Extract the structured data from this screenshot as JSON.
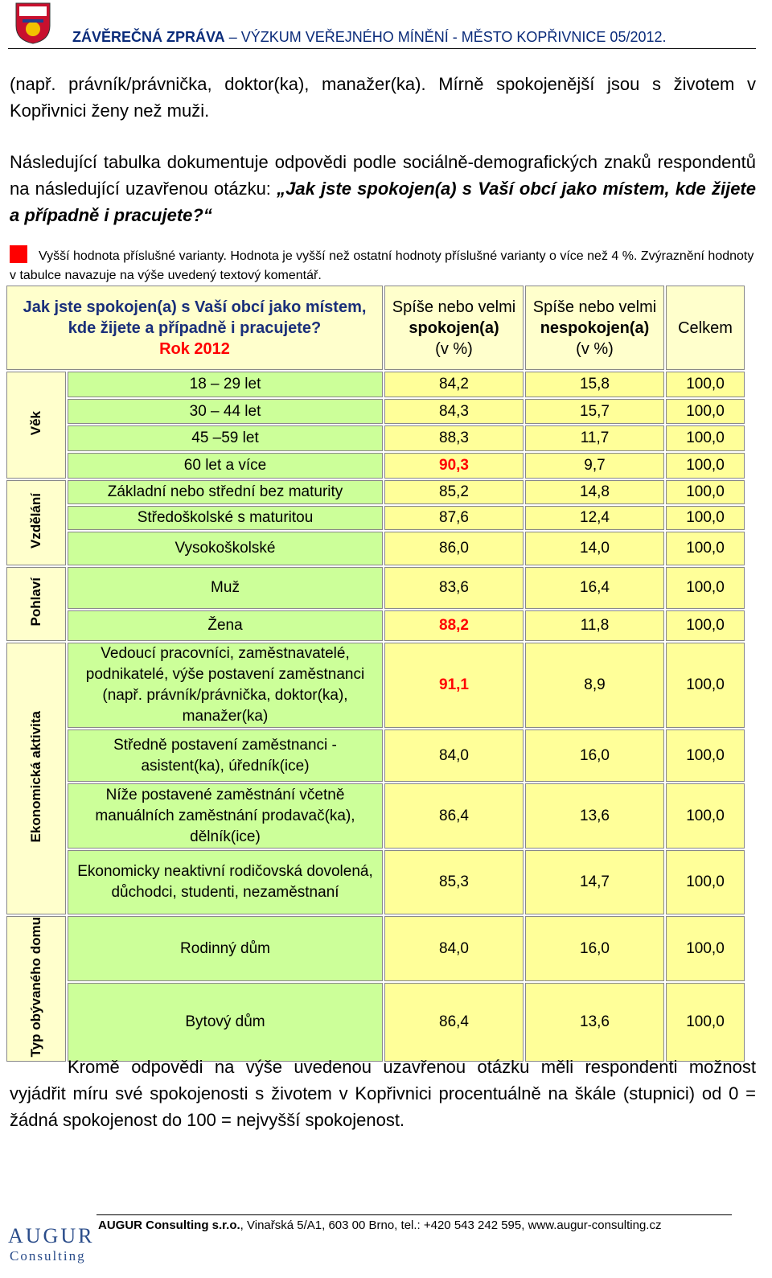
{
  "header": {
    "title_bold": "ZÁVĚREČNÁ ZPRÁVA",
    "title_rest": " – VÝZKUM VEŘEJNÉHO MÍNĚNÍ - MĚSTO KOPŘIVNICE 05/2012."
  },
  "intro": "(např. právník/právnička, doktor(ka), manažer(ka). Mírně spokojenější jsou s životem v Kopřivnici  ženy než muži.",
  "lead": {
    "text": "Následující tabulka dokumentuje odpovědi podle sociálně-demografických znaků respondentů na následující uzavřenou otázku: ",
    "question": "„Jak jste spokojen(a) s Vaší obcí jako místem, kde žijete a případně i pracujete?“"
  },
  "legend": {
    "color": "#ff0000",
    "text": "Vyšší hodnota příslušné varianty. Hodnota je vyšší než ostatní hodnoty příslušné varianty o více než 4 %. Zvýraznění hodnoty v tabulce navazuje na výše uvedený textový komentář."
  },
  "table": {
    "question": "Jak jste spokojen(a) s Vaší obcí jako místem, kde žijete a případně i pracujete?",
    "year": "Rok 2012",
    "columns": [
      {
        "pre": "Spíše nebo velmi",
        "strong": "spokojen(a)",
        "unit": "(v %)"
      },
      {
        "pre": "Spíše nebo velmi",
        "strong": "nespokojen(a)",
        "unit": "(v %)"
      },
      {
        "pre": "Celkem"
      }
    ],
    "groups": [
      {
        "label": "Věk",
        "rows": [
          {
            "label": "18 – 29 let",
            "values": [
              "84,2",
              "15,8",
              "100,0"
            ]
          },
          {
            "label": "30 – 44 let",
            "values": [
              "84,3",
              "15,7",
              "100,0"
            ]
          },
          {
            "label": "45 –59 let",
            "values": [
              "88,3",
              "11,7",
              "100,0"
            ]
          },
          {
            "label": "60 let a více",
            "values": [
              "90,3",
              "9,7",
              "100,0"
            ],
            "highlight": 0
          }
        ]
      },
      {
        "label": "Vzdělání",
        "rows": [
          {
            "label": "Základní nebo střední bez maturity",
            "values": [
              "85,2",
              "14,8",
              "100,0"
            ]
          },
          {
            "label": "Středoškolské s maturitou",
            "values": [
              "87,6",
              "12,4",
              "100,0"
            ]
          },
          {
            "label": "Vysokoškolské",
            "values": [
              "86,0",
              "14,0",
              "100,0"
            ]
          }
        ]
      },
      {
        "label": "Pohlaví",
        "rows": [
          {
            "label": "Muž",
            "values": [
              "83,6",
              "16,4",
              "100,0"
            ]
          },
          {
            "label": "Žena",
            "values": [
              "88,2",
              "11,8",
              "100,0"
            ],
            "highlight": 0
          }
        ]
      },
      {
        "label": "Ekonomická aktivita",
        "rows": [
          {
            "label": "Vedoucí pracovníci, zaměstnavatelé, podnikatelé, výše postavení zaměstnanci (např. právník/právnička, doktor(ka), manažer(ka)",
            "values": [
              "91,1",
              "8,9",
              "100,0"
            ],
            "highlight": 0
          },
          {
            "label": "Středně postavení zaměstnanci - asistent(ka), úředník(ice)",
            "values": [
              "84,0",
              "16,0",
              "100,0"
            ]
          },
          {
            "label": "Níže postavené zaměstnání včetně manuálních zaměstnání prodavač(ka), dělník(ice)",
            "values": [
              "86,4",
              "13,6",
              "100,0"
            ]
          },
          {
            "label": "Ekonomicky neaktivní rodičovská dovolená, důchodci, studenti, nezaměstnaní",
            "values": [
              "85,3",
              "14,7",
              "100,0"
            ]
          }
        ]
      },
      {
        "label": "Typ obývaného domu",
        "rows": [
          {
            "label": "Rodinný dům",
            "values": [
              "84,0",
              "16,0",
              "100,0"
            ]
          },
          {
            "label": "Bytový dům",
            "values": [
              "86,4",
              "13,6",
              "100,0"
            ]
          }
        ]
      }
    ]
  },
  "closing": "Kromě odpovědi na výše uvedenou uzavřenou otázku měli respondenti možnost vyjádřit míru své spokojenosti s životem v Kopřivnici procentuálně na škále (stupnici) od 0 = žádná spokojenost do 100 = nejvyšší spokojenost.",
  "footer": {
    "logo_top": "AUGUR",
    "logo_bottom": "Consulting",
    "company": "AUGUR Consulting s.r.o.",
    "address": ", Vinařská 5/A1, 603 00 Brno, tel.: +420 543 242 595, www.augur-consulting.cz"
  }
}
